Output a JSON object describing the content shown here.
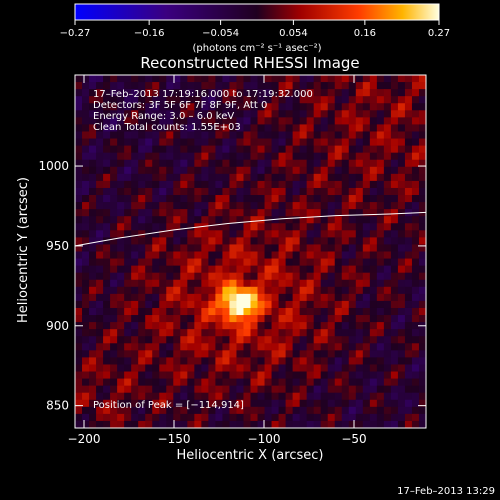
{
  "chart_data": {
    "type": "heatmap",
    "title": "Reconstructed RHESSI Image",
    "xlabel": "Heliocentric X (arcsec)",
    "ylabel": "Heliocentric Y (arcsec)",
    "xlim": [
      -205,
      -10
    ],
    "ylim": [
      836,
      1057
    ],
    "x_ticks": [
      -200,
      -150,
      -100,
      -50
    ],
    "x_tick_labels": [
      "−200",
      "−150",
      "−100",
      "−50"
    ],
    "y_ticks": [
      850,
      900,
      950,
      1000
    ],
    "y_tick_labels": [
      "850",
      "900",
      "950",
      "1000"
    ],
    "colorbar": {
      "range": [
        -0.27,
        0.27
      ],
      "ticks": [
        -0.27,
        -0.16,
        -0.054,
        0.054,
        0.16,
        0.27
      ],
      "tick_labels": [
        "−0.27",
        "−0.16",
        "−0.054",
        "0.054",
        "0.16",
        "0.27"
      ],
      "units_label": "(photons cm⁻² s⁻¹ asec⁻²)"
    },
    "annotations": [
      "17–Feb–2013 17:19:16.000 to 17:19:32.000",
      "Detectors: 3F 5F 6F 7F 8F 9F, Att 0",
      "Energy Range: 3.0 – 6.0 keV",
      "Clean    Total counts: 1.55E+03"
    ],
    "peak": {
      "x": -114,
      "y": 914,
      "label": "Position of Peak = [−114,914]"
    },
    "limb": {
      "x": [
        -205,
        -180,
        -150,
        -120,
        -90,
        -60,
        -30,
        -10
      ],
      "y": [
        950,
        955,
        960,
        964,
        967,
        969,
        970,
        971
      ]
    },
    "timestamp": "17–Feb–2013 13:29"
  }
}
